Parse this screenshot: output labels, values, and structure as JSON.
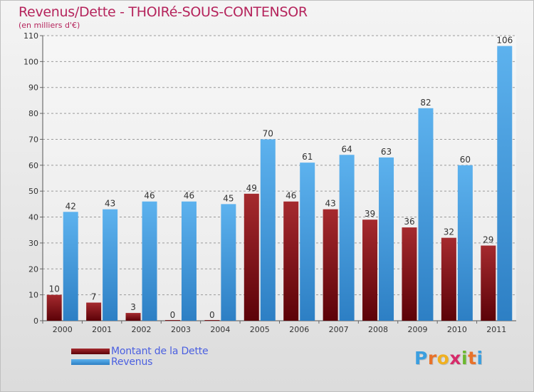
{
  "title": "Revenus/Dette - THOIRé-SOUS-CONTENSOR",
  "subtitle": "(en milliers d'€)",
  "chart_data": {
    "type": "bar",
    "categories": [
      "2000",
      "2001",
      "2002",
      "2003",
      "2004",
      "2005",
      "2006",
      "2007",
      "2008",
      "2009",
      "2010",
      "2011"
    ],
    "series": [
      {
        "name": "Montant de la Dette",
        "color": "#7b0f14",
        "values": [
          10,
          7,
          3,
          0,
          0,
          49,
          46,
          43,
          39,
          36,
          32,
          29
        ]
      },
      {
        "name": "Revenus",
        "color": "#3f97dc",
        "values": [
          42,
          43,
          46,
          46,
          45,
          70,
          61,
          64,
          63,
          82,
          60,
          106
        ]
      }
    ],
    "ylim": [
      0,
      110
    ],
    "yticks": [
      0,
      10,
      20,
      30,
      40,
      50,
      60,
      70,
      80,
      90,
      100,
      110
    ],
    "grid": true,
    "legend_position": "bottom-left"
  },
  "legend": {
    "debt_label": "Montant de la Dette",
    "revenue_label": "Revenus"
  },
  "logo": {
    "letters": [
      "P",
      "r",
      "o",
      "x",
      "i",
      "t",
      "i"
    ],
    "colors": [
      "#3b9fe0",
      "#e8722a",
      "#f0b020",
      "#d62b6a",
      "#6bb82f",
      "#e8722a",
      "#3b9fe0"
    ]
  }
}
